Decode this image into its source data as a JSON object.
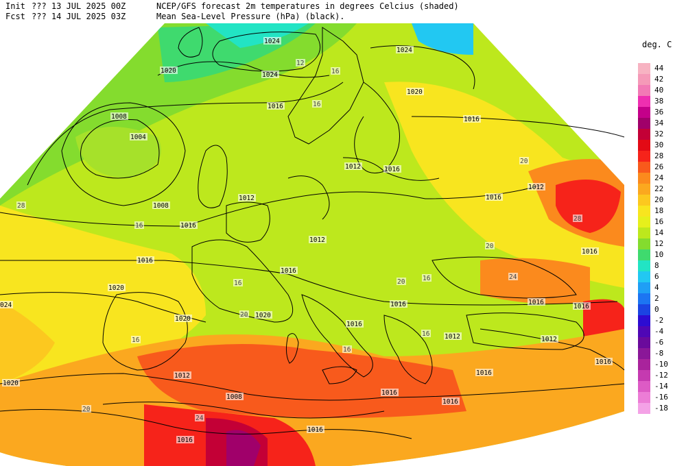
{
  "header": {
    "init_label": "Init",
    "fcst_label": "Fcst",
    "init_time": "??? 13 JUL 2025 00Z",
    "fcst_time": "??? 14 JUL 2025 03Z",
    "title_line1": "NCEP/GFS forecast 2m temperatures in degrees Celcius (shaded)",
    "title_line2": "Mean Sea-Level Pressure (hPa) (black)."
  },
  "legend": {
    "unit": "deg. C",
    "levels": [
      {
        "v": 44,
        "label": "44",
        "color": "#f7b3c2"
      },
      {
        "v": 42,
        "label": "42",
        "color": "#f59ab8"
      },
      {
        "v": 40,
        "label": "40",
        "color": "#f27ab5"
      },
      {
        "v": 38,
        "label": "38",
        "color": "#ee2fb0"
      },
      {
        "v": 36,
        "label": "36",
        "color": "#c4008a"
      },
      {
        "v": 34,
        "label": "34",
        "color": "#a0006a"
      },
      {
        "v": 32,
        "label": "32",
        "color": "#c30036"
      },
      {
        "v": 30,
        "label": "30",
        "color": "#e30a15"
      },
      {
        "v": 28,
        "label": "28",
        "color": "#f6231a"
      },
      {
        "v": 26,
        "label": "26",
        "color": "#f85a1c"
      },
      {
        "v": 24,
        "label": "24",
        "color": "#fb8a1d"
      },
      {
        "v": 22,
        "label": "22",
        "color": "#fba81f"
      },
      {
        "v": 20,
        "label": "20",
        "color": "#fcc81f"
      },
      {
        "v": 18,
        "label": "18",
        "color": "#f8e51f"
      },
      {
        "v": 16,
        "label": "16",
        "color": "#e6f01c"
      },
      {
        "v": 14,
        "label": "14",
        "color": "#bde81d"
      },
      {
        "v": 12,
        "label": "12",
        "color": "#84dc2e"
      },
      {
        "v": 10,
        "label": "10",
        "color": "#3fda6e"
      },
      {
        "v": 8,
        "label": "8",
        "color": "#22e4c4"
      },
      {
        "v": 6,
        "label": "6",
        "color": "#22c8f2"
      },
      {
        "v": 4,
        "label": "4",
        "color": "#1f9ff5"
      },
      {
        "v": 2,
        "label": "2",
        "color": "#1c75f2"
      },
      {
        "v": 0,
        "label": "0",
        "color": "#1b44e2"
      },
      {
        "v": -2,
        "label": "-2",
        "color": "#2c0cd2"
      },
      {
        "v": -4,
        "label": "-4",
        "color": "#4f07b5"
      },
      {
        "v": -6,
        "label": "-6",
        "color": "#6a0a9c"
      },
      {
        "v": -8,
        "label": "-8",
        "color": "#8a1798"
      },
      {
        "v": -10,
        "label": "-10",
        "color": "#a9239c"
      },
      {
        "v": -12,
        "label": "-12",
        "color": "#c53ab0"
      },
      {
        "v": -14,
        "label": "-14",
        "color": "#dd5bc5"
      },
      {
        "v": -16,
        "label": "-16",
        "color": "#ec7dd6"
      },
      {
        "v": -18,
        "label": "-18",
        "color": "#f4a2e6"
      }
    ]
  },
  "isobar_labels": [
    {
      "t": "1024"
    },
    {
      "t": "1024"
    },
    {
      "t": "1024"
    },
    {
      "t": "1020"
    },
    {
      "t": "1020"
    },
    {
      "t": "1016"
    },
    {
      "t": "1016"
    },
    {
      "t": "1016"
    },
    {
      "t": "1016"
    },
    {
      "t": "1016"
    },
    {
      "t": "1008"
    },
    {
      "t": "1004"
    },
    {
      "t": "1008"
    },
    {
      "t": "1012"
    },
    {
      "t": "1012"
    },
    {
      "t": "1012"
    },
    {
      "t": "1012"
    },
    {
      "t": "1016"
    },
    {
      "t": "1016"
    },
    {
      "t": "1016"
    },
    {
      "t": "1020"
    },
    {
      "t": "1020"
    },
    {
      "t": "1020"
    },
    {
      "t": "1016"
    },
    {
      "t": "1016"
    },
    {
      "t": "1016"
    },
    {
      "t": "1016"
    },
    {
      "t": "1016"
    },
    {
      "t": "1016"
    },
    {
      "t": "1012"
    },
    {
      "t": "1012"
    },
    {
      "t": "1016"
    },
    {
      "t": "1016"
    },
    {
      "t": "1012"
    },
    {
      "t": "1008"
    },
    {
      "t": "1008"
    },
    {
      "t": "1016"
    },
    {
      "t": "1016"
    },
    {
      "t": "024"
    },
    {
      "t": "1020"
    }
  ],
  "temp_labels": [
    {
      "t": "12"
    },
    {
      "t": "16"
    },
    {
      "t": "16"
    },
    {
      "t": "16"
    },
    {
      "t": "16"
    },
    {
      "t": "16"
    },
    {
      "t": "20"
    },
    {
      "t": "28"
    },
    {
      "t": "20"
    },
    {
      "t": "16"
    },
    {
      "t": "20"
    },
    {
      "t": "24"
    },
    {
      "t": "20"
    },
    {
      "t": "16"
    },
    {
      "t": "16"
    },
    {
      "t": "24"
    },
    {
      "t": "20"
    },
    {
      "t": "28"
    }
  ],
  "colors": {
    "background": "#ffffff",
    "isobar": "#000000",
    "coast": "#000000"
  }
}
